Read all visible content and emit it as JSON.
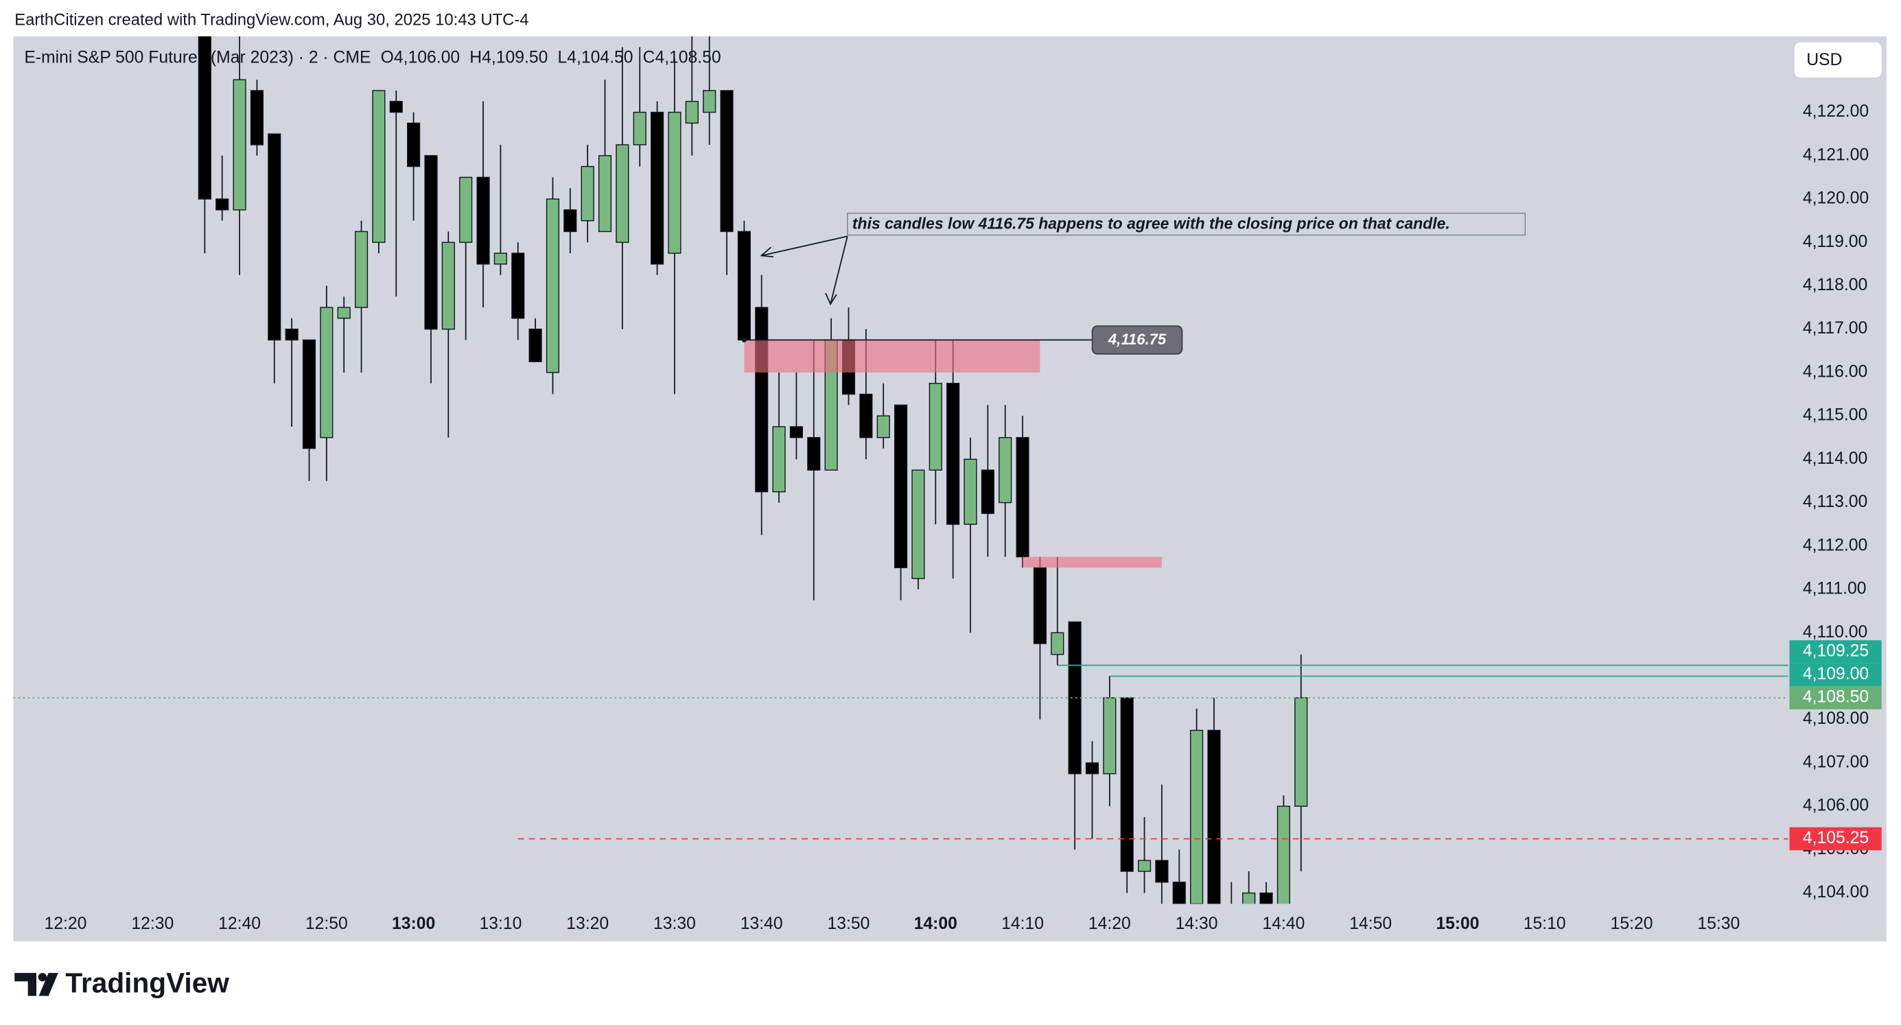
{
  "credit": "EarthCitizen created with TradingView.com, Aug 30, 2025 10:43 UTC-4",
  "brand": "TradingView",
  "chart_data": {
    "type": "candlestick",
    "title": "E-mini S&P 500 Futures (Mar 2023) · 2 · CME",
    "ohlc_labels": [
      "O4,106.00",
      "H4,109.50",
      "L4,104.50",
      "C4,108.50"
    ],
    "currency": "USD",
    "up_color": "#79b981",
    "down_color": "#000000",
    "x": [
      "12:36",
      "12:38",
      "12:40",
      "12:42",
      "12:44",
      "12:46",
      "12:48",
      "12:50",
      "12:52",
      "12:54",
      "12:56",
      "12:58",
      "13:00",
      "13:02",
      "13:04",
      "13:06",
      "13:08",
      "13:10",
      "13:12",
      "13:14",
      "13:16",
      "13:18",
      "13:20",
      "13:22",
      "13:24",
      "13:26",
      "13:28",
      "13:30",
      "13:32",
      "13:34",
      "13:36",
      "13:38",
      "13:40",
      "13:42",
      "13:44",
      "13:46",
      "13:48",
      "13:50",
      "13:52",
      "13:54",
      "13:56",
      "13:58",
      "14:00",
      "14:02",
      "14:04",
      "14:06",
      "14:08",
      "14:10",
      "14:12",
      "14:14",
      "14:16",
      "14:18",
      "14:20",
      "14:22",
      "14:24",
      "14:26",
      "14:28",
      "14:30",
      "14:32",
      "14:34",
      "14:36",
      "14:38",
      "14:40",
      "14:42"
    ],
    "open": [
      4124.5,
      4120,
      4119.75,
      4122.5,
      4121.5,
      4117,
      4116.75,
      4114.5,
      4117.25,
      4117.5,
      4119,
      4122.25,
      4121.75,
      4121,
      4117,
      4119,
      4120.5,
      4118.5,
      4118.75,
      4117,
      4116,
      4119.75,
      4119.5,
      4119.25,
      4119,
      4121.25,
      4122,
      4118.75,
      4121.75,
      4122,
      4122.5,
      4119.25,
      4117.5,
      4113.25,
      4114.75,
      4114.5,
      4113.75,
      4116.75,
      4115.5,
      4114.5,
      4115.25,
      4111.25,
      4113.75,
      4115.75,
      4112.5,
      4113.75,
      4113,
      4114.5,
      4111.5,
      4109.5,
      4110.25,
      4107,
      4106.75,
      4108.5,
      4104.5,
      4104.75,
      4104.25,
      4103.75,
      4107.75,
      4103.5,
      4103,
      4104,
      4103.5,
      4106
    ],
    "high": [
      4125,
      4121,
      4123.75,
      4122.75,
      4121.5,
      4117.25,
      4116.75,
      4118,
      4117.75,
      4119.5,
      4122.5,
      4122.5,
      4122,
      4121,
      4119.25,
      4120.5,
      4122.25,
      4121.25,
      4119,
      4117.25,
      4120.5,
      4120.25,
      4121.25,
      4122.75,
      4123.5,
      4123.5,
      4122.25,
      4123.25,
      4123.75,
      4124.25,
      4122.5,
      4119.5,
      4118.25,
      4116,
      4116,
      4116.75,
      4117.25,
      4117.5,
      4117,
      4115.75,
      4115.25,
      4113.75,
      4116.75,
      4116.75,
      4114.5,
      4115.25,
      4115.25,
      4115,
      4111.75,
      4111.75,
      4110.25,
      4107.5,
      4109,
      4108.5,
      4105.75,
      4106.5,
      4105,
      4108.25,
      4108.5,
      4104.25,
      4104.5,
      4104.25,
      4106.25,
      4109.5
    ],
    "low": [
      4118.75,
      4119.5,
      4118.25,
      4121,
      4115.75,
      4114.75,
      4113.5,
      4113.5,
      4116,
      4116,
      4118.75,
      4117.75,
      4119.5,
      4115.75,
      4114.5,
      4116.75,
      4117.5,
      4118.25,
      4116.75,
      4116.25,
      4115.5,
      4118.75,
      4119,
      4119.25,
      4117,
      4120.75,
      4118.25,
      4115.5,
      4121,
      4121.25,
      4118.25,
      4116.75,
      4112.25,
      4113,
      4114,
      4110.75,
      4113.75,
      4115.25,
      4114,
      4114.25,
      4110.75,
      4111,
      4112.5,
      4111.25,
      4110,
      4111.75,
      4111.75,
      4111.5,
      4108,
      4109.25,
      4105,
      4105.25,
      4106,
      4104,
      4104,
      4103.5,
      4103.25,
      4103.25,
      4103,
      4102.5,
      4102.75,
      4102.5,
      4103,
      4104.5
    ],
    "close": [
      4120,
      4119.75,
      4122.75,
      4121.25,
      4116.75,
      4116.75,
      4114.25,
      4117.5,
      4117.5,
      4119.25,
      4122.5,
      4122,
      4120.75,
      4117,
      4119,
      4120.5,
      4118.5,
      4118.75,
      4117.25,
      4116.25,
      4120,
      4119.25,
      4120.75,
      4121,
      4121.25,
      4122,
      4118.5,
      4122,
      4122.25,
      4122.5,
      4119.25,
      4116.75,
      4113.25,
      4114.75,
      4114.5,
      4113.75,
      4116.75,
      4115.5,
      4114.5,
      4115,
      4111.5,
      4113.75,
      4115.75,
      4112.5,
      4114,
      4112.75,
      4114.5,
      4111.75,
      4109.75,
      4110,
      4106.75,
      4106.75,
      4108.5,
      4104.5,
      4104.75,
      4104.25,
      4103.5,
      4107.75,
      4103.5,
      4103,
      4104,
      4103.5,
      4106,
      4108.5
    ],
    "xlim": [
      "12:14",
      "15:38"
    ],
    "xticks": [
      "12:20",
      "12:30",
      "12:40",
      "12:50",
      "13:00",
      "13:10",
      "13:20",
      "13:30",
      "13:40",
      "13:50",
      "14:00",
      "14:10",
      "14:20",
      "14:30",
      "14:40",
      "14:50",
      "15:00",
      "15:10",
      "15:20",
      "15:30"
    ],
    "ylim": [
      4103.75,
      4123.75
    ],
    "yticks": [
      {
        "value": 4104,
        "label": "4,104.00"
      },
      {
        "value": 4105,
        "label": "4,105.00"
      },
      {
        "value": 4106,
        "label": "4,106.00"
      },
      {
        "value": 4107,
        "label": "4,107.00"
      },
      {
        "value": 4108,
        "label": "4,108.00"
      },
      {
        "value": 4109,
        "label": "4,109.00"
      },
      {
        "value": 4110,
        "label": "4,110.00"
      },
      {
        "value": 4111,
        "label": "4,111.00"
      },
      {
        "value": 4112,
        "label": "4,112.00"
      },
      {
        "value": 4113,
        "label": "4,113.00"
      },
      {
        "value": 4114,
        "label": "4,114.00"
      },
      {
        "value": 4115,
        "label": "4,115.00"
      },
      {
        "value": 4116,
        "label": "4,116.00"
      },
      {
        "value": 4117,
        "label": "4,117.00"
      },
      {
        "value": 4118,
        "label": "4,118.00"
      },
      {
        "value": 4119,
        "label": "4,119.00"
      },
      {
        "value": 4120,
        "label": "4,120.00"
      },
      {
        "value": 4121,
        "label": "4,121.00"
      },
      {
        "value": 4122,
        "label": "4,122.00"
      }
    ],
    "levels": [
      {
        "value": 4109.25,
        "label": "4,109.25",
        "color": "#22ab94",
        "style": "solid",
        "start": "14:14"
      },
      {
        "value": 4109,
        "label": "4,109.00",
        "color": "#22ab94",
        "style": "solid",
        "start": "14:20"
      },
      {
        "value": 4108.5,
        "label": "4,108.50",
        "color": "#6aaf76",
        "style": "dotted",
        "start": "12:14"
      },
      {
        "value": 4105.25,
        "label": "4,105.25",
        "color": "#f23645",
        "style": "dashed",
        "start": "13:12"
      }
    ],
    "zones": [
      {
        "low": 4116,
        "high": 4116.75,
        "start": "13:38",
        "end": "14:12",
        "color": "#f0707f"
      },
      {
        "low": 4111.5,
        "high": 4111.75,
        "start": "14:10",
        "end": "14:26",
        "color": "#f0707f"
      }
    ],
    "annotation": {
      "text": "this candles low 4116.75 happens to agree with the closing price on that candle.",
      "marker": {
        "value": 4116.75,
        "label": "4,116.75"
      },
      "start": "13:38"
    }
  }
}
